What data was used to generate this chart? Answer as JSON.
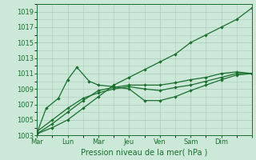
{
  "xlabel": "Pression niveau de la mer( hPa )",
  "xlim": [
    0,
    7
  ],
  "ylim": [
    1003,
    1020
  ],
  "yticks": [
    1003,
    1005,
    1007,
    1009,
    1011,
    1013,
    1015,
    1017,
    1019
  ],
  "xtick_positions": [
    0,
    1,
    2,
    3,
    4,
    5,
    6,
    7
  ],
  "xtick_labels": [
    "Mar",
    "Lun",
    "Mar",
    "Jeu",
    "Ven",
    "Sam",
    "Dim",
    ""
  ],
  "bg_color": "#cce8d8",
  "grid_color": "#aaccbb",
  "line_color": "#1a6e2e",
  "line_color2": "#2d8a45",
  "s1_x": [
    0,
    0.5,
    1,
    1.5,
    2,
    2.5,
    3,
    3.5,
    4,
    4.5,
    5,
    5.5,
    6,
    6.5,
    7
  ],
  "s1_y": [
    1003.2,
    1004.0,
    1005.0,
    1006.5,
    1008.0,
    1009.5,
    1010.5,
    1011.5,
    1012.5,
    1013.5,
    1015.0,
    1016.0,
    1017.0,
    1018.0,
    1019.5
  ],
  "s2_x": [
    0,
    0.3,
    0.7,
    1.0,
    1.3,
    1.7,
    2.0,
    2.5,
    3.0,
    3.5,
    4.0,
    4.5,
    5.0,
    5.5,
    6.0,
    6.5,
    7.0
  ],
  "s2_y": [
    1003.3,
    1006.5,
    1007.8,
    1010.2,
    1011.8,
    1010.0,
    1009.5,
    1009.3,
    1009.0,
    1007.5,
    1007.5,
    1008.0,
    1008.8,
    1009.5,
    1010.2,
    1010.8,
    1011.0
  ],
  "s3_x": [
    0,
    0.5,
    1.0,
    1.5,
    2.0,
    2.5,
    3.0,
    3.5,
    4.0,
    4.5,
    5.0,
    5.5,
    6.0,
    6.5,
    7.0
  ],
  "s3_y": [
    1003.5,
    1005.0,
    1006.5,
    1007.8,
    1008.5,
    1009.0,
    1009.3,
    1009.0,
    1008.8,
    1009.2,
    1009.5,
    1010.0,
    1010.5,
    1011.0,
    1011.0
  ],
  "s4_x": [
    0,
    0.5,
    1.0,
    1.5,
    2.0,
    2.5,
    3.0,
    3.5,
    4.0,
    4.5,
    5.0,
    5.5,
    6.0,
    6.5,
    7.0
  ],
  "s4_y": [
    1003.2,
    1004.5,
    1006.0,
    1007.5,
    1008.8,
    1009.2,
    1009.5,
    1009.5,
    1009.5,
    1009.8,
    1010.2,
    1010.5,
    1011.0,
    1011.2,
    1011.0
  ]
}
